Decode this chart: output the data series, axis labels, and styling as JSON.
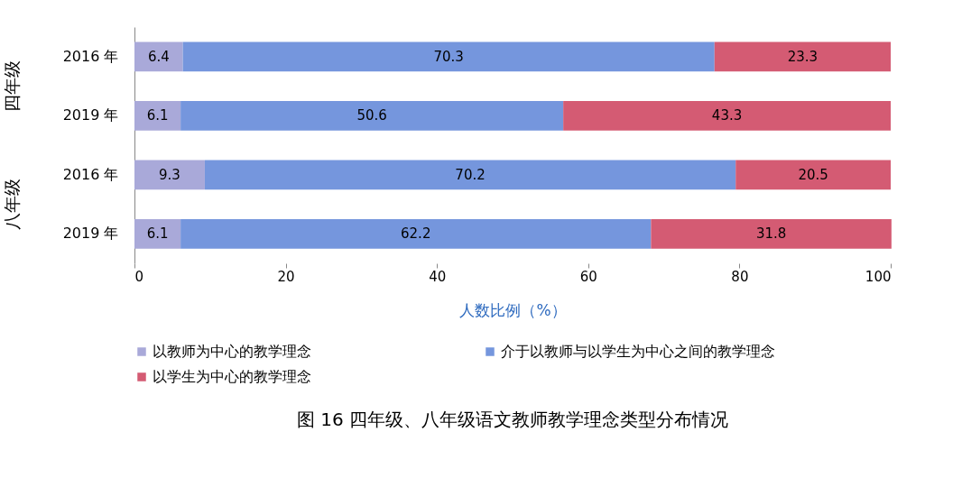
{
  "chart_data": {
    "type": "bar",
    "orientation": "horizontal",
    "stacked": true,
    "title": "图 16   四年级、八年级语文教师教学理念类型分布情况",
    "xlabel": "人数比例（%）",
    "categories": [
      "2016 年",
      "2019 年",
      "2016 年",
      "2019 年"
    ],
    "annotations": [
      "四年级",
      "八年级"
    ],
    "series": [
      {
        "name": "以教师为中心的教学理念",
        "color": "#a9a9d9",
        "values": [
          6.4,
          6.1,
          9.3,
          6.1
        ]
      },
      {
        "name": "介于以教师与以学生为中心之间的教学理念",
        "color": "#7596dd",
        "values": [
          70.3,
          50.6,
          70.2,
          62.2
        ]
      },
      {
        "name": "以学生为中心的教学理念",
        "color": "#d45b73",
        "values": [
          23.3,
          43.3,
          20.5,
          31.8
        ]
      }
    ],
    "xlim": [
      0,
      100
    ],
    "xticks": [
      0,
      20,
      40,
      60,
      80,
      100
    ],
    "data_labels": true,
    "legend": "bottom"
  }
}
